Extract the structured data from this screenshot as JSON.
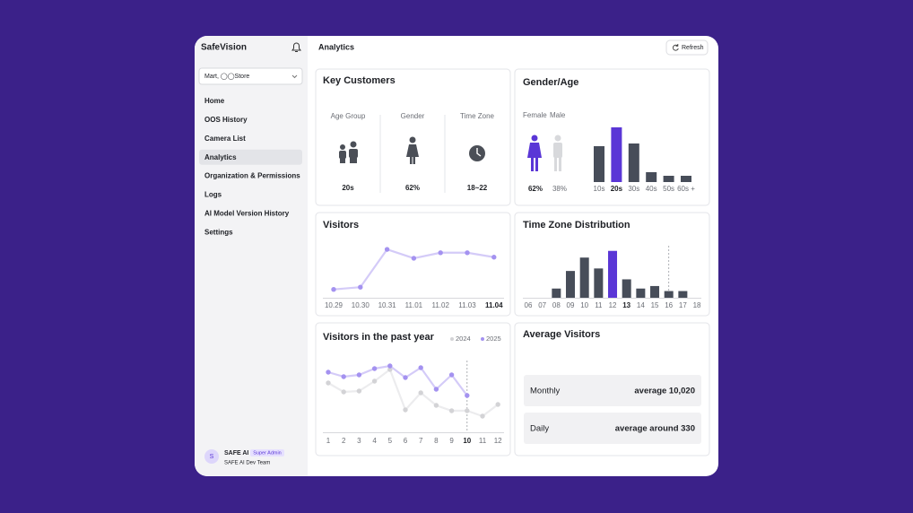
{
  "sidebar": {
    "brand": "SafeVision",
    "store": "Mart, ◯◯Store",
    "nav": [
      "Home",
      "OOS History",
      "Camera List",
      "Analytics",
      "Organization & Permissions",
      "Logs",
      "AI Model Version History",
      "Settings"
    ],
    "active_index": 3,
    "user": {
      "avatar": "S",
      "name": "SAFE AI",
      "badge": "Super Admin",
      "team": "SAFE AI Dev Team"
    }
  },
  "header": {
    "title": "Analytics",
    "refresh": "Refresh"
  },
  "key_customers": {
    "title": "Key Customers",
    "items": [
      {
        "label": "Age Group",
        "value": "20s"
      },
      {
        "label": "Gender",
        "value": "62%"
      },
      {
        "label": "Time Zone",
        "value": "18~22"
      }
    ]
  },
  "gender_age": {
    "title": "Gender/Age",
    "female": "Female",
    "male": "Male",
    "female_pct": "62%",
    "male_pct": "38%",
    "chart": {
      "type": "bar",
      "categories": [
        "10s",
        "20s",
        "30s",
        "40s",
        "50s",
        "60s +"
      ],
      "values": [
        40,
        61,
        43,
        11,
        7,
        7
      ],
      "colors": [
        "#474d59",
        "#5a36d6",
        "#474d59",
        "#474d59",
        "#474d59",
        "#474d59"
      ],
      "ylim": [
        0,
        70
      ],
      "emphasis_index": 1
    }
  },
  "visitors": {
    "title": "Visitors",
    "chart": {
      "type": "line",
      "categories": [
        "10.29",
        "10.30",
        "10.31",
        "11.01",
        "11.02",
        "11.03",
        "11.04"
      ],
      "values": [
        15,
        19,
        87,
        71,
        81,
        81,
        73
      ],
      "color": "#d4cbf8",
      "marker_color": "#a492f0",
      "ylim": [
        0,
        100
      ],
      "emphasis_index": 6
    }
  },
  "time_zone": {
    "title": "Time Zone Distribution",
    "chart": {
      "type": "bar",
      "categories": [
        "06",
        "07",
        "08",
        "09",
        "10",
        "11",
        "12",
        "13",
        "14",
        "15",
        "16",
        "17",
        "18"
      ],
      "values": [
        0,
        0,
        11,
        32,
        48,
        35,
        56,
        22,
        11,
        14,
        8,
        8,
        0
      ],
      "colors": [
        "#474d59",
        "#474d59",
        "#474d59",
        "#474d59",
        "#474d59",
        "#474d59",
        "#5a36d6",
        "#474d59",
        "#474d59",
        "#474d59",
        "#474d59",
        "#474d59",
        "#474d59"
      ],
      "ylim": [
        0,
        60
      ],
      "emphasis_index": 7,
      "marker_index": 10
    }
  },
  "past_year": {
    "title": "Visitors in the past year",
    "chart": {
      "type": "line",
      "categories": [
        "1",
        "2",
        "3",
        "4",
        "5",
        "6",
        "7",
        "8",
        "9",
        "10",
        "11",
        "12"
      ],
      "ylim": [
        0,
        90
      ],
      "marker_index": 9,
      "series": [
        {
          "name": "2024",
          "color": "#ececee",
          "marker_color": "#d3d3d6",
          "values": [
            53,
            43,
            44,
            55,
            68,
            23,
            42,
            28,
            22,
            22,
            16,
            29
          ]
        },
        {
          "name": "2025",
          "color": "#d4cbf8",
          "marker_color": "#a492f0",
          "values": [
            65,
            60,
            62,
            69,
            72,
            59,
            70,
            46,
            62,
            39,
            null,
            null
          ]
        }
      ]
    }
  },
  "average_visitors": {
    "title": "Average Visitors",
    "rows": [
      {
        "label": "Monthly",
        "value": "average 10,020"
      },
      {
        "label": "Daily",
        "value": "average around 330"
      }
    ]
  }
}
